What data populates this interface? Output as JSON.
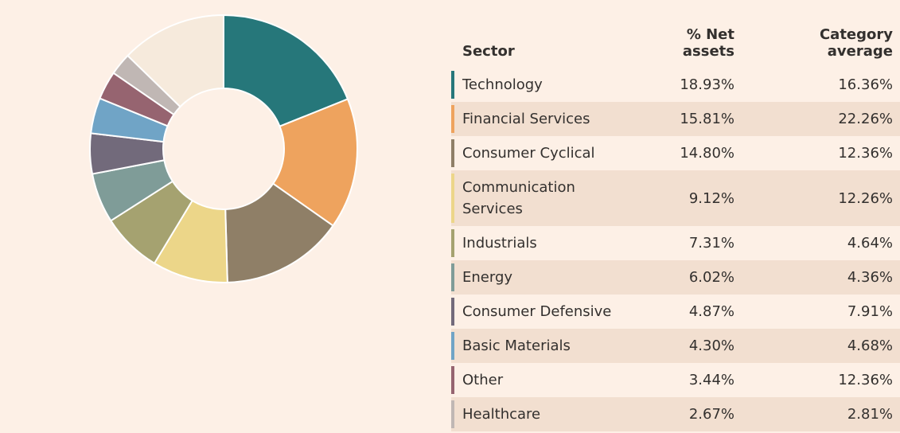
{
  "chart_data": {
    "type": "pie",
    "donut": true,
    "categories": [
      "Technology",
      "Financial Services",
      "Consumer Cyclical",
      "Communication Services",
      "Industrials",
      "Energy",
      "Consumer Defensive",
      "Basic Materials",
      "Other",
      "Healthcare",
      null
    ],
    "values": [
      18.93,
      15.81,
      14.8,
      9.12,
      7.31,
      6.02,
      4.87,
      4.3,
      3.44,
      2.67,
      12.73
    ],
    "value_labels": [
      "18.93%",
      "15.81%",
      "14.80%",
      "9.12%",
      "7.31%",
      "6.02%",
      "4.87%",
      "4.30%",
      "3.44%",
      "2.67%",
      null
    ],
    "colors": [
      "#26777a",
      "#eea35e",
      "#8f7f67",
      "#ecd689",
      "#a5a270",
      "#7f9c98",
      "#726a7b",
      "#70a4c6",
      "#966470",
      "#c0b7b4",
      "#f6eadc"
    ]
  },
  "table": {
    "headers": [
      "Sector",
      "% Net assets",
      "Category average"
    ],
    "category_average": [
      "16.36%",
      "22.26%",
      "12.36%",
      "12.26%",
      "4.64%",
      "4.36%",
      "7.91%",
      "4.68%",
      "12.36%",
      "2.81%"
    ]
  }
}
